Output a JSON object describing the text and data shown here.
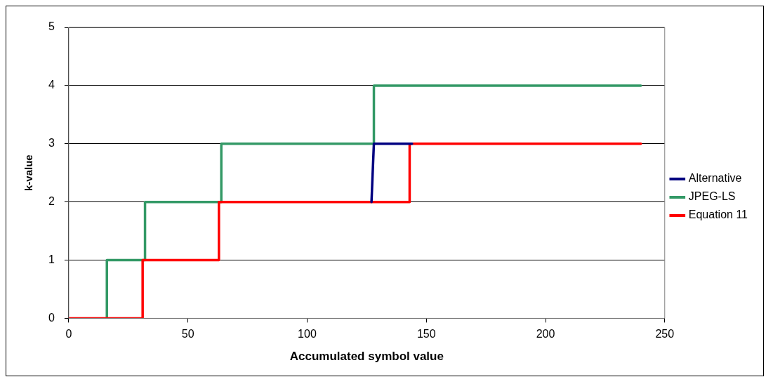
{
  "chart_data": {
    "type": "line",
    "xlabel": "Accumulated symbol value",
    "ylabel": "k-value",
    "xlim": [
      0,
      250
    ],
    "xticks": [
      0,
      50,
      100,
      150,
      200,
      250
    ],
    "ylim": [
      0,
      5
    ],
    "yticks": [
      0,
      1,
      2,
      3,
      4,
      5
    ],
    "grid": "y",
    "legend": "right",
    "marker": "none",
    "line_style": "solid",
    "series": [
      {
        "name": "Alternative",
        "color": "#000080",
        "x": [
          127,
          128,
          144
        ],
        "values": [
          2,
          3,
          3
        ]
      },
      {
        "name": "JPEG-LS",
        "color": "#339966",
        "x": [
          16,
          16,
          32,
          32,
          64,
          64,
          128,
          128,
          240
        ],
        "values": [
          0,
          1,
          1,
          2,
          2,
          3,
          3,
          4,
          4
        ]
      },
      {
        "name": "Equation 11",
        "color": "#ff0000",
        "x": [
          0,
          31,
          31,
          63,
          63,
          143,
          143,
          240
        ],
        "values": [
          0,
          0,
          1,
          1,
          2,
          2,
          3,
          3
        ]
      }
    ]
  }
}
